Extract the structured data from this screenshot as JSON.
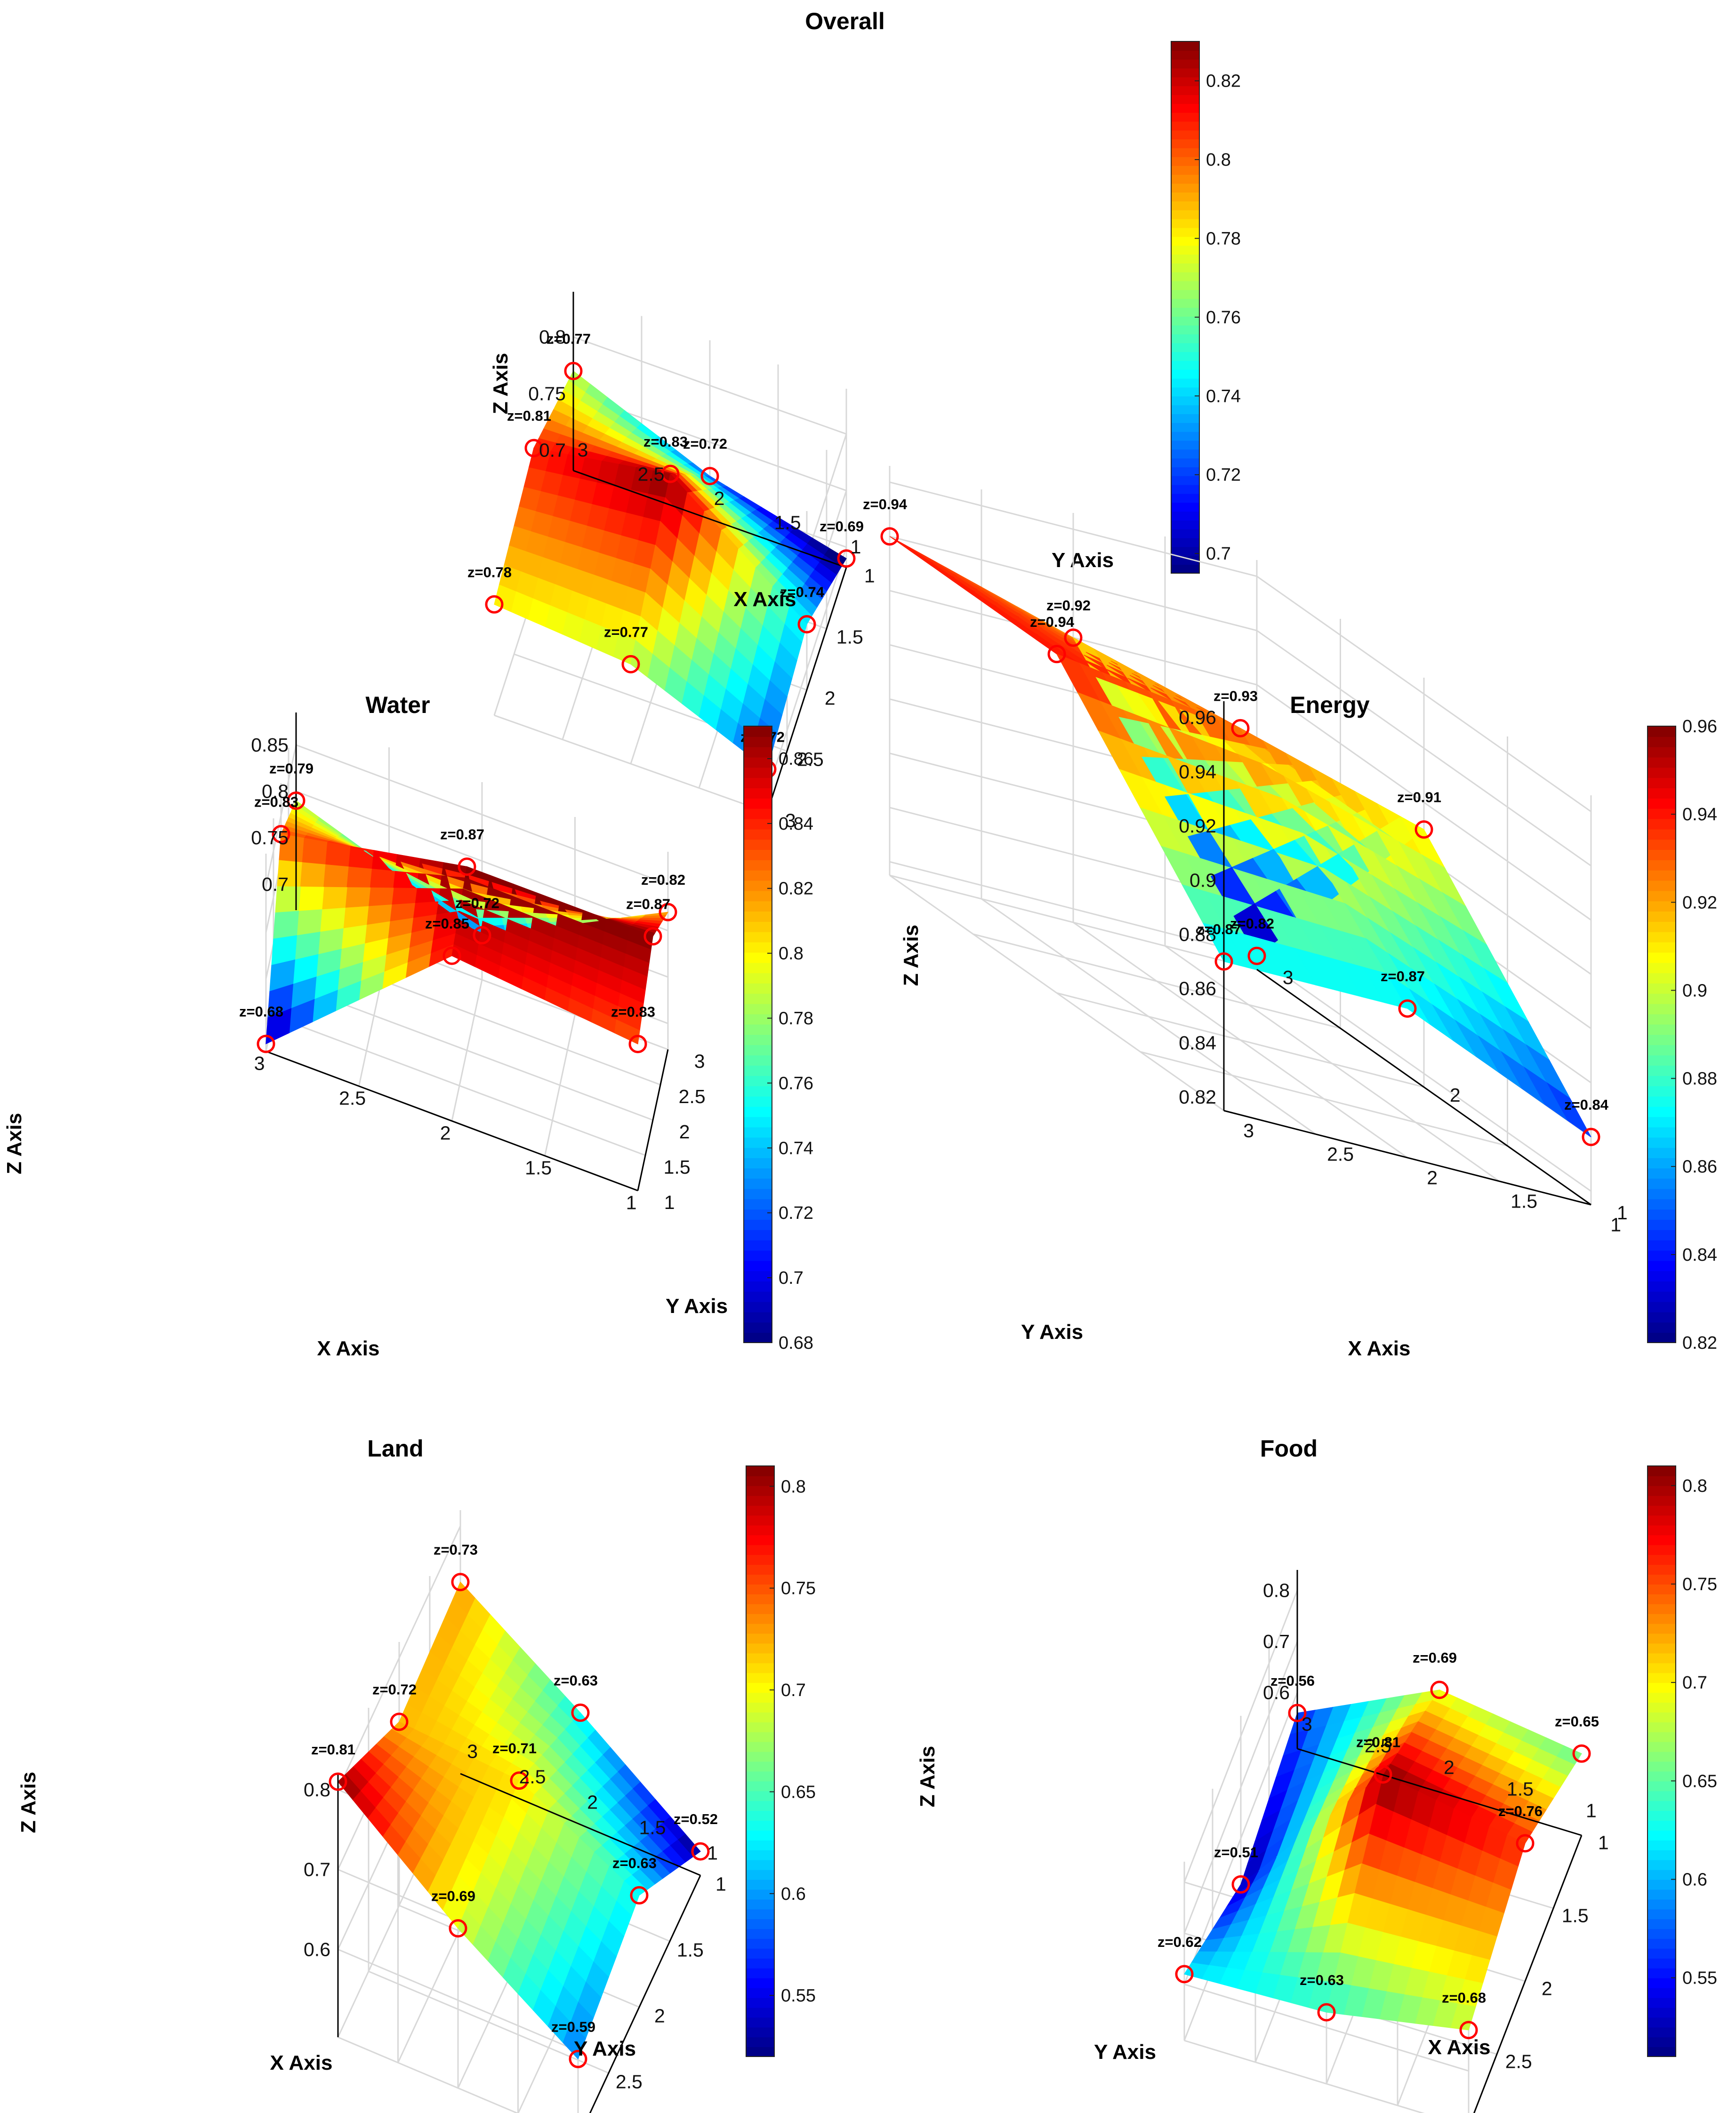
{
  "colors": {
    "marker": "#ff0000",
    "grid": "#d8d8d8",
    "axis": "#000000",
    "colormap": "jet"
  },
  "chart_data": [
    {
      "type": "surface3d",
      "title": "Overall",
      "xlabel": "X Axis",
      "ylabel": "Y Axis",
      "zlabel": "Z Axis",
      "x": [
        1,
        2,
        3
      ],
      "y": [
        1,
        2,
        3
      ],
      "xticks": [
        "1",
        "1.5",
        "2",
        "2.5",
        "3"
      ],
      "yticks": [
        "1",
        "1.5",
        "2",
        "2.5",
        "3"
      ],
      "zticks": [
        "0.7",
        "0.75",
        "0.8"
      ],
      "zlim": [
        0.69,
        0.83
      ],
      "z": [
        [
          0.69,
          0.72,
          0.77
        ],
        [
          0.74,
          0.83,
          0.81
        ],
        [
          0.72,
          0.77,
          0.78
        ]
      ],
      "labels": [
        "z=0.69",
        "z=0.72",
        "z=0.77",
        "z=0.74",
        "z=0.83",
        "z=0.81",
        "z=0.72",
        "z=0.77",
        "z=0.78"
      ],
      "colorbar": {
        "min": 0.695,
        "max": 0.83,
        "ticks": [
          "0.7",
          "0.72",
          "0.74",
          "0.76",
          "0.78",
          "0.8",
          "0.82"
        ]
      },
      "grid": true
    },
    {
      "type": "surface3d",
      "title": "Water",
      "xlabel": "X Axis",
      "ylabel": "Y Axis",
      "zlabel": "Z Axis",
      "x": [
        1,
        2,
        3
      ],
      "y": [
        1,
        2,
        3
      ],
      "xticks": [
        "1",
        "1.5",
        "2",
        "2.5",
        "3"
      ],
      "yticks": [
        "1",
        "1.5",
        "2",
        "2.5",
        "3"
      ],
      "zticks": [
        "0.7",
        "0.75",
        "0.8",
        "0.85"
      ],
      "zlim": [
        0.68,
        0.87
      ],
      "z": [
        [
          0.83,
          0.85,
          0.68
        ],
        [
          0.87,
          0.87,
          0.83
        ],
        [
          0.82,
          0.72,
          0.79
        ]
      ],
      "labels": [
        "z=0.83",
        "z=0.85",
        "z=0.68",
        "z=0.87",
        "z=0.87",
        "z=0.83",
        "z=0.82",
        "z=0.72",
        "z=0.79"
      ],
      "colorbar": {
        "min": 0.68,
        "max": 0.87,
        "ticks": [
          "0.68",
          "0.7",
          "0.72",
          "0.74",
          "0.76",
          "0.78",
          "0.8",
          "0.82",
          "0.84",
          "0.86"
        ]
      },
      "grid": true
    },
    {
      "type": "surface3d",
      "title": "Energy",
      "xlabel": "X Axis",
      "ylabel": "Y Axis",
      "zlabel": "Z Axis",
      "x": [
        1,
        2,
        3
      ],
      "y": [
        1,
        2,
        3
      ],
      "xticks": [
        "1",
        "1.5",
        "2",
        "2.5",
        "3"
      ],
      "yticks": [
        "1",
        "2",
        "3"
      ],
      "zticks": [
        "0.82",
        "0.84",
        "0.86",
        "0.88",
        "0.9",
        "0.92",
        "0.94",
        "0.96"
      ],
      "zlim": [
        0.82,
        0.96
      ],
      "z": [
        [
          0.84,
          0.87,
          0.87
        ],
        [
          0.91,
          0.93,
          0.94
        ],
        [
          0.82,
          0.92,
          0.94
        ]
      ],
      "labels": [
        "z=0.84",
        "z=0.87",
        "z=0.87",
        "z=0.91",
        "z=0.93",
        "z=0.94",
        "z=0.82",
        "z=0.92",
        "z=0.94"
      ],
      "colorbar": {
        "min": 0.82,
        "max": 0.96,
        "ticks": [
          "0.82",
          "0.84",
          "0.86",
          "0.88",
          "0.9",
          "0.92",
          "0.94",
          "0.96"
        ]
      },
      "grid": true
    },
    {
      "type": "surface3d",
      "title": "Land",
      "xlabel": "X Axis",
      "ylabel": "Y Axis",
      "zlabel": "Z Axis",
      "x": [
        1,
        2,
        3
      ],
      "y": [
        1,
        2,
        3
      ],
      "xticks": [
        "1",
        "1.5",
        "2",
        "2.5",
        "3"
      ],
      "yticks": [
        "1",
        "1.5",
        "2",
        "2.5",
        "3"
      ],
      "zticks": [
        "0.6",
        "0.7",
        "0.8"
      ],
      "zlim": [
        0.52,
        0.81
      ],
      "z": [
        [
          0.52,
          0.63,
          0.73
        ],
        [
          0.63,
          0.71,
          0.72
        ],
        [
          0.59,
          0.69,
          0.81
        ]
      ],
      "labels": [
        "z=0.52",
        "z=0.63",
        "z=0.73",
        "z=0.63",
        "z=0.71",
        "z=0.72",
        "z=0.59",
        "z=0.69",
        "z=0.81"
      ],
      "colorbar": {
        "min": 0.52,
        "max": 0.81,
        "ticks": [
          "0.55",
          "0.6",
          "0.65",
          "0.7",
          "0.75",
          "0.8"
        ]
      },
      "grid": true
    },
    {
      "type": "surface3d",
      "title": "Food",
      "xlabel": "X Axis",
      "ylabel": "Y Axis",
      "zlabel": "Z Axis",
      "x": [
        1,
        2,
        3
      ],
      "y": [
        1,
        2,
        3
      ],
      "xticks": [
        "1",
        "1.5",
        "2",
        "2.5",
        "3"
      ],
      "yticks": [
        "1",
        "1.5",
        "2",
        "2.5",
        "3"
      ],
      "zticks": [
        "0.6",
        "0.7",
        "0.8"
      ],
      "zlim": [
        0.51,
        0.81
      ],
      "z": [
        [
          0.65,
          0.76,
          0.68
        ],
        [
          0.69,
          0.81,
          0.63
        ],
        [
          0.56,
          0.51,
          0.62
        ]
      ],
      "labels": [
        "z=0.65",
        "z=0.76",
        "z=0.68",
        "z=0.69",
        "z=0.81",
        "z=0.63",
        "z=0.56",
        "z=0.51",
        "z=0.62"
      ],
      "colorbar": {
        "min": 0.51,
        "max": 0.81,
        "ticks": [
          "0.55",
          "0.6",
          "0.65",
          "0.7",
          "0.75",
          "0.8"
        ]
      },
      "grid": true
    }
  ]
}
